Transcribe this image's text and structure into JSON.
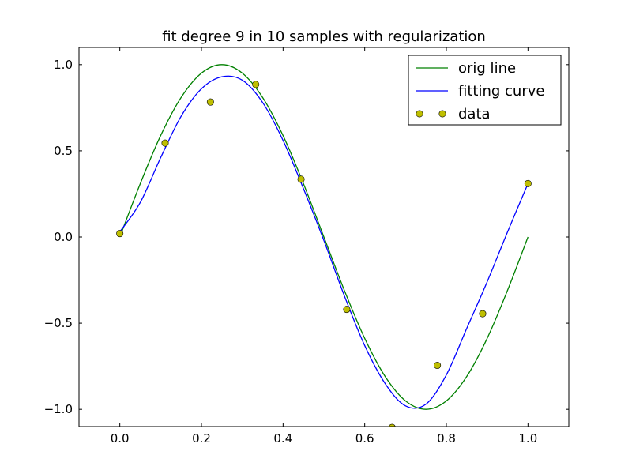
{
  "chart_data": {
    "type": "line",
    "title": "fit degree 9 in 10 samples with regularization",
    "xlabel": "",
    "ylabel": "",
    "xlim": [
      -0.1,
      1.1
    ],
    "ylim": [
      -1.1,
      1.1
    ],
    "x_ticks": [
      0.0,
      0.2,
      0.4,
      0.6,
      0.8,
      1.0
    ],
    "x_tick_labels": [
      "0.0",
      "0.2",
      "0.4",
      "0.6",
      "0.8",
      "1.0"
    ],
    "y_ticks": [
      -1.0,
      -0.5,
      0.0,
      0.5,
      1.0
    ],
    "y_tick_labels": [
      "−1.0",
      "−0.5",
      "0.0",
      "0.5",
      "1.0"
    ],
    "grid": false,
    "legend_position": "top-right",
    "series": [
      {
        "name": "orig line",
        "kind": "line",
        "color": "#008000",
        "x": [
          0.0,
          0.05,
          0.1,
          0.15,
          0.2,
          0.25,
          0.3,
          0.35,
          0.4,
          0.45,
          0.5,
          0.55,
          0.6,
          0.65,
          0.7,
          0.75,
          0.8,
          0.85,
          0.9,
          0.95,
          1.0
        ],
        "y": [
          0.0,
          0.309,
          0.588,
          0.809,
          0.951,
          1.0,
          0.951,
          0.809,
          0.588,
          0.309,
          0.0,
          -0.309,
          -0.588,
          -0.809,
          -0.951,
          -1.0,
          -0.951,
          -0.809,
          -0.588,
          -0.309,
          0.0
        ]
      },
      {
        "name": "fitting curve",
        "kind": "line",
        "color": "#0000ff",
        "x": [
          0.0,
          0.05,
          0.1,
          0.15,
          0.2,
          0.25,
          0.3,
          0.35,
          0.4,
          0.45,
          0.5,
          0.55,
          0.6,
          0.65,
          0.7,
          0.75,
          0.8,
          0.85,
          0.9,
          0.95,
          1.0
        ],
        "y": [
          0.03,
          0.2,
          0.46,
          0.7,
          0.86,
          0.93,
          0.91,
          0.78,
          0.56,
          0.28,
          -0.02,
          -0.34,
          -0.63,
          -0.85,
          -0.98,
          -0.97,
          -0.8,
          -0.53,
          -0.26,
          0.03,
          0.31
        ]
      },
      {
        "name": "data",
        "kind": "scatter",
        "color": "#bfbf00",
        "edge_color": "#000000",
        "x": [
          0.0,
          0.111,
          0.222,
          0.333,
          0.444,
          0.556,
          0.667,
          0.778,
          0.889,
          1.0
        ],
        "y": [
          0.02,
          0.545,
          0.783,
          0.885,
          0.335,
          -0.42,
          -1.105,
          -0.745,
          -0.445,
          0.31
        ]
      }
    ]
  }
}
